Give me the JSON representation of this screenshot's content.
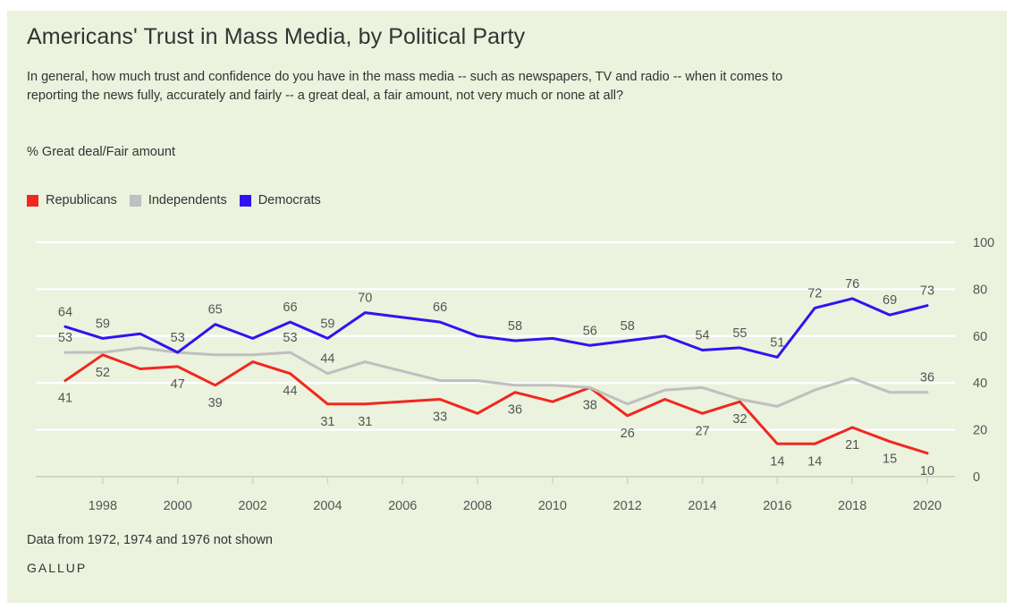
{
  "header": {
    "title": "Americans' Trust in Mass Media, by Political Party",
    "subtitle": "In general, how much trust and confidence do you have in the mass media -- such as newspapers, TV and radio -- when it comes to reporting the news fully, accurately and fairly -- a great deal, a fair amount, not very much or none at all?",
    "measure": "% Great deal/Fair amount"
  },
  "footer": {
    "note": "Data from 1972, 1974 and 1976 not shown",
    "brand": "GALLUP"
  },
  "colors": {
    "background": "#ebf2de",
    "gridline": "#ffffff",
    "axis": "#cfd6c4",
    "republicans": "#f0281e",
    "independents": "#bfbfbf",
    "democrats": "#2f14f0"
  },
  "chart_data": {
    "type": "line",
    "title": "Americans' Trust in Mass Media, by Political Party",
    "ylabel": "% Great deal/Fair amount",
    "ylim": [
      0,
      100
    ],
    "yticks": [
      0,
      20,
      40,
      60,
      80,
      100
    ],
    "xlim": [
      1997,
      2020
    ],
    "xticks": [
      1998,
      2000,
      2002,
      2004,
      2006,
      2008,
      2010,
      2012,
      2014,
      2016,
      2018,
      2020
    ],
    "grid": true,
    "legend_position": "top-left",
    "x": [
      1997,
      1998,
      1999,
      2000,
      2001,
      2002,
      2003,
      2004,
      2005,
      2007,
      2008,
      2009,
      2010,
      2011,
      2012,
      2013,
      2014,
      2015,
      2016,
      2017,
      2018,
      2019,
      2020
    ],
    "series": [
      {
        "name": "Republicans",
        "color": "#f0281e",
        "values": [
          41,
          52,
          46,
          47,
          39,
          49,
          44,
          31,
          31,
          33,
          27,
          36,
          32,
          38,
          26,
          33,
          27,
          32,
          14,
          14,
          21,
          15,
          10
        ],
        "data_labels": {
          "1997": "41",
          "1998": "52",
          "2000": "47",
          "2001": "39",
          "2003": "44",
          "2004": "31",
          "2005": "31",
          "2007": "33",
          "2009": "36",
          "2011": "38",
          "2012": "26",
          "2014": "27",
          "2015": "32",
          "2016": "14",
          "2017": "14",
          "2018": "21",
          "2019": "15",
          "2020": "10"
        }
      },
      {
        "name": "Independents",
        "color": "#bfbfbf",
        "values": [
          53,
          53,
          55,
          53,
          52,
          52,
          53,
          44,
          49,
          41,
          41,
          39,
          39,
          38,
          31,
          37,
          38,
          33,
          30,
          37,
          42,
          36,
          36
        ],
        "data_labels": {
          "1997": "53",
          "2000": "53",
          "2003": "53",
          "2004": "44",
          "2020": "36"
        }
      },
      {
        "name": "Democrats",
        "color": "#2f14f0",
        "values": [
          64,
          59,
          61,
          53,
          65,
          59,
          66,
          59,
          70,
          66,
          60,
          58,
          59,
          56,
          58,
          60,
          54,
          55,
          51,
          72,
          76,
          69,
          73
        ],
        "data_labels": {
          "1997": "64",
          "1998": "59",
          "2001": "65",
          "2003": "66",
          "2004": "59",
          "2005": "70",
          "2007": "66",
          "2009": "58",
          "2011": "56",
          "2012": "58",
          "2014": "54",
          "2015": "55",
          "2016": "51",
          "2017": "72",
          "2018": "76",
          "2019": "69",
          "2020": "73"
        }
      }
    ]
  }
}
